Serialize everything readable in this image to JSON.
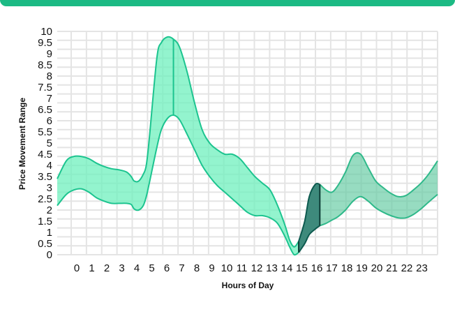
{
  "chart_data": {
    "type": "area",
    "xlabel": "Hours of Day",
    "ylabel": "Price Movement Range",
    "x_ticks": [
      "0",
      "1",
      "2",
      "3",
      "4",
      "5",
      "6",
      "7",
      "8",
      "9",
      "10",
      "11",
      "12",
      "13",
      "14",
      "15",
      "16",
      "17",
      "18",
      "19",
      "20",
      "21",
      "22",
      "23"
    ],
    "y_ticks": [
      "0",
      "0.5",
      "1",
      "1.5",
      "2",
      "2.5",
      "3",
      "3.5",
      "4",
      "4.5",
      "5",
      "5.5",
      "6",
      "6.5",
      "7",
      "7.5",
      "8",
      "8.5",
      "9",
      "9.5",
      "10"
    ],
    "xlim": [
      -1.1,
      24.1
    ],
    "ylim": [
      0,
      10
    ],
    "grid": true,
    "series": [
      {
        "color": "#1cc48f",
        "points": [
          {
            "x": -1.1,
            "low": 2.2,
            "high": 3.4
          },
          {
            "x": -0.5,
            "low": 2.7,
            "high": 4.2
          },
          {
            "x": 0,
            "low": 2.9,
            "high": 4.4
          },
          {
            "x": 0.5,
            "low": 2.95,
            "high": 4.4
          },
          {
            "x": 1,
            "low": 2.8,
            "high": 4.3
          },
          {
            "x": 1.5,
            "low": 2.55,
            "high": 4.1
          },
          {
            "x": 2,
            "low": 2.4,
            "high": 3.95
          },
          {
            "x": 2.5,
            "low": 2.3,
            "high": 3.85
          },
          {
            "x": 3,
            "low": 2.3,
            "high": 3.8
          },
          {
            "x": 3.5,
            "low": 2.3,
            "high": 3.7
          },
          {
            "x": 3.8,
            "low": 2.25,
            "high": 3.5
          },
          {
            "x": 4.0,
            "low": 2.05,
            "high": 3.3
          },
          {
            "x": 4.3,
            "low": 2.0,
            "high": 3.3
          },
          {
            "x": 4.6,
            "low": 2.2,
            "high": 3.6
          },
          {
            "x": 4.8,
            "low": 2.6,
            "high": 4.0
          },
          {
            "x": 5.0,
            "low": 3.2,
            "high": 5.2
          },
          {
            "x": 5.5,
            "low": 4.8,
            "high": 8.8
          },
          {
            "x": 5.8,
            "low": 5.6,
            "high": 9.5
          },
          {
            "x": 6.2,
            "low": 6.1,
            "high": 9.75
          },
          {
            "x": 6.6,
            "low": 6.25,
            "high": 9.65
          },
          {
            "x": 7.0,
            "low": 6.05,
            "high": 9.3
          },
          {
            "x": 7.5,
            "low": 5.4,
            "high": 8.2
          },
          {
            "x": 8,
            "low": 4.7,
            "high": 6.8
          },
          {
            "x": 8.5,
            "low": 4.0,
            "high": 5.6
          },
          {
            "x": 9,
            "low": 3.5,
            "high": 5.0
          },
          {
            "x": 9.5,
            "low": 3.1,
            "high": 4.7
          },
          {
            "x": 10,
            "low": 2.8,
            "high": 4.5
          },
          {
            "x": 10.5,
            "low": 2.5,
            "high": 4.5
          },
          {
            "x": 11,
            "low": 2.2,
            "high": 4.3
          },
          {
            "x": 11.5,
            "low": 1.9,
            "high": 3.9
          },
          {
            "x": 12,
            "low": 1.75,
            "high": 3.5
          },
          {
            "x": 12.5,
            "low": 1.75,
            "high": 3.2
          },
          {
            "x": 13,
            "low": 1.65,
            "high": 2.9
          },
          {
            "x": 13.5,
            "low": 1.4,
            "high": 2.2
          },
          {
            "x": 14,
            "low": 0.8,
            "high": 1.3
          },
          {
            "x": 14.3,
            "low": 0.35,
            "high": 0.65
          },
          {
            "x": 14.6,
            "low": 0.0,
            "high": 0.35
          },
          {
            "x": 14.9,
            "low": 0.1,
            "high": 0.6
          }
        ]
      },
      {
        "color": "#0d5a4f",
        "points": [
          {
            "x": 14.9,
            "low": 0.1,
            "high": 0.6
          },
          {
            "x": 15.3,
            "low": 0.5,
            "high": 1.5
          },
          {
            "x": 15.6,
            "low": 0.9,
            "high": 2.6
          },
          {
            "x": 16.0,
            "low": 1.15,
            "high": 3.15
          },
          {
            "x": 16.3,
            "low": 1.3,
            "high": 3.15
          }
        ]
      },
      {
        "color": "#2fb98a",
        "points": [
          {
            "x": 16.3,
            "low": 1.3,
            "high": 3.15
          },
          {
            "x": 16.7,
            "low": 1.4,
            "high": 2.9
          },
          {
            "x": 17.1,
            "low": 1.55,
            "high": 2.8
          },
          {
            "x": 17.5,
            "low": 1.7,
            "high": 3.1
          },
          {
            "x": 18.0,
            "low": 2.0,
            "high": 3.7
          },
          {
            "x": 18.5,
            "low": 2.4,
            "high": 4.45
          },
          {
            "x": 19.0,
            "low": 2.6,
            "high": 4.5
          },
          {
            "x": 19.5,
            "low": 2.4,
            "high": 3.9
          },
          {
            "x": 20.0,
            "low": 2.1,
            "high": 3.3
          },
          {
            "x": 20.5,
            "low": 1.9,
            "high": 3.0
          },
          {
            "x": 21.0,
            "low": 1.75,
            "high": 2.75
          },
          {
            "x": 21.5,
            "low": 1.65,
            "high": 2.6
          },
          {
            "x": 22.0,
            "low": 1.65,
            "high": 2.65
          },
          {
            "x": 22.5,
            "low": 1.8,
            "high": 2.9
          },
          {
            "x": 23.0,
            "low": 2.05,
            "high": 3.2
          },
          {
            "x": 23.5,
            "low": 2.35,
            "high": 3.6
          },
          {
            "x": 24.1,
            "low": 2.7,
            "high": 4.2
          }
        ]
      }
    ],
    "markers": [
      {
        "x": 6.6,
        "low": 6.25,
        "high": 9.65
      }
    ]
  }
}
